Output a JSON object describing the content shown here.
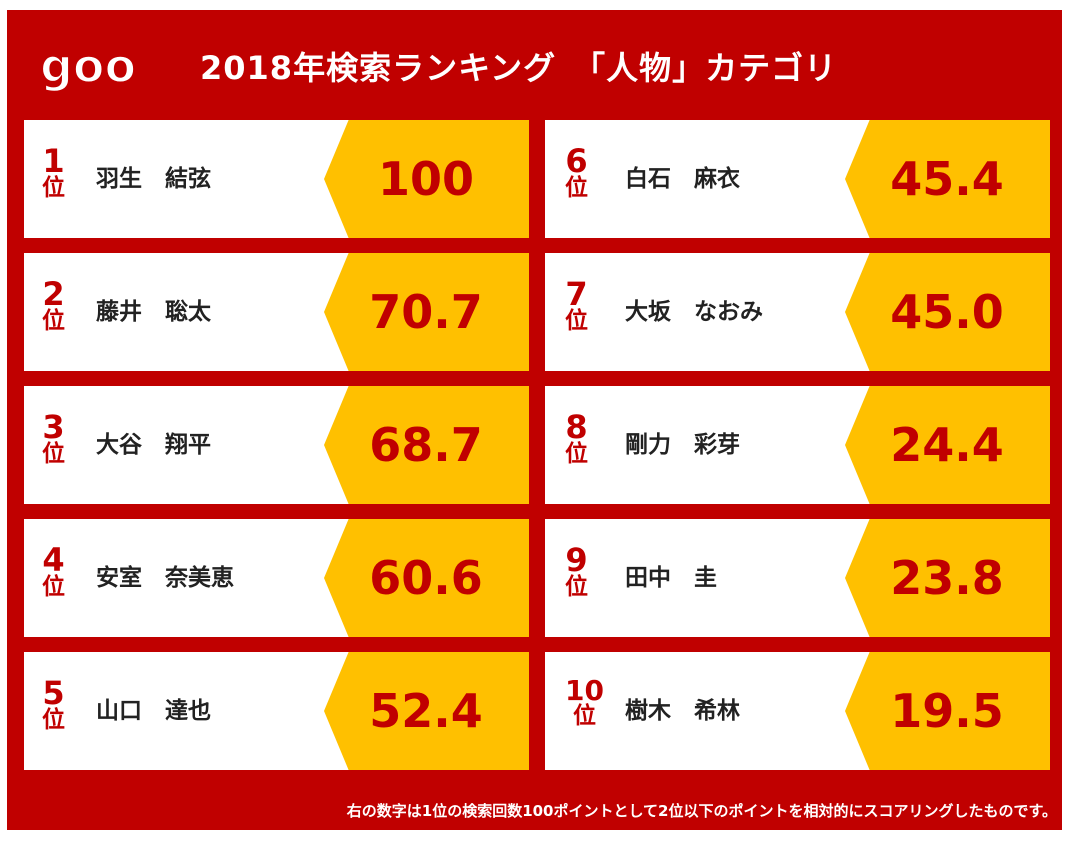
{
  "logo": {
    "text": "goo",
    "colors": {
      "fill": "#ffffff",
      "stroke": "#c00000"
    }
  },
  "title": "2018年検索ランキング　「人物」カテゴリ",
  "rank_unit": "位",
  "entries": [
    {
      "rank": "1",
      "name": "羽生　結弦",
      "score": "100"
    },
    {
      "rank": "2",
      "name": "藤井　聡太",
      "score": "70.7"
    },
    {
      "rank": "3",
      "name": "大谷　翔平",
      "score": "68.7"
    },
    {
      "rank": "4",
      "name": "安室　奈美恵",
      "score": "60.6"
    },
    {
      "rank": "5",
      "name": "山口　達也",
      "score": "52.4"
    },
    {
      "rank": "6",
      "name": "白石　麻衣",
      "score": "45.4"
    },
    {
      "rank": "7",
      "name": "大坂　なおみ",
      "score": "45.0"
    },
    {
      "rank": "8",
      "name": "剛力　彩芽",
      "score": "24.4"
    },
    {
      "rank": "9",
      "name": "田中　圭",
      "score": "23.8"
    },
    {
      "rank": "10",
      "name": "樹木　希林",
      "score": "19.5"
    }
  ],
  "footnote": "右の数字は1位の検索回数100ポイントとして2位以下のポイントを相対的にスコアリングしたものです。",
  "colors": {
    "frame": "#c00000",
    "accent": "#ffc000",
    "card": "#ffffff",
    "rank_text": "#c00000"
  }
}
